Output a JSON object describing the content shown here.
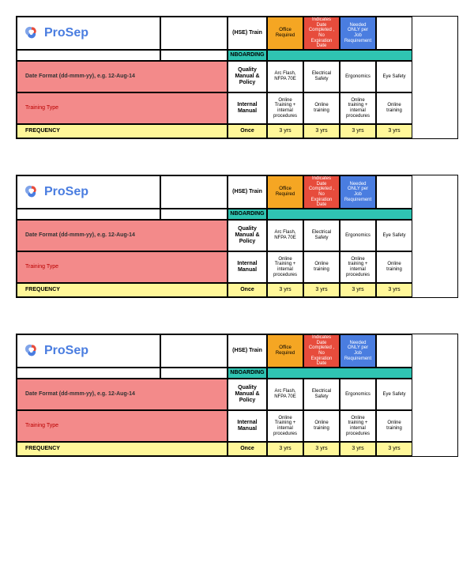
{
  "brand": {
    "name": "ProSep",
    "colors": {
      "blue": "#4a7de0",
      "red": "#e74c3c"
    }
  },
  "blocks": [
    {
      "header": {
        "hse_train": "(HSE) Train",
        "legend": [
          {
            "text": "Office Required",
            "bg": "#f5a623",
            "color": "#000"
          },
          {
            "text": "Indicates Date Completed , No Expiration Date",
            "bg": "#e74c3c",
            "color": "#fff"
          },
          {
            "text": "Needed ONLY per Job Requirement",
            "bg": "#4a7de0",
            "color": "#fff"
          }
        ],
        "nboarding": "NBOARDING"
      },
      "rows": [
        {
          "left": {
            "text": "Date Format (dd-mmm-yy), e.g. 12-Aug-14",
            "style": "pink-label"
          },
          "hdr": "Quality Manual & Policy",
          "cols": [
            "Arc Flash, NFPA 70E",
            "Electrical Safety",
            "Ergonomics",
            "Eye Safety"
          ]
        },
        {
          "left": {
            "text": "Training Type",
            "style": "pink-sublabel"
          },
          "hdr": "Internal Manual",
          "cols": [
            "Online Training + internal procedures",
            "Online training",
            "Online training + internal procedures",
            "Online training"
          ]
        }
      ],
      "freq": {
        "label": "FREQUENCY",
        "hdr": "Once",
        "cols": [
          "3 yrs",
          "3 yrs",
          "3 yrs",
          "3 yrs"
        ]
      }
    },
    {
      "header": {
        "hse_train": "(HSE) Train",
        "legend": [
          {
            "text": "Office Required",
            "bg": "#f5a623",
            "color": "#000"
          },
          {
            "text": "Indicates Date Completed , No Expiration Date",
            "bg": "#e74c3c",
            "color": "#fff"
          },
          {
            "text": "Needed ONLY per Job Requirement",
            "bg": "#4a7de0",
            "color": "#fff"
          }
        ],
        "nboarding": "NBOARDING"
      },
      "rows": [
        {
          "left": {
            "text": "Date Format (dd-mmm-yy), e.g. 12-Aug-14",
            "style": "pink-label"
          },
          "hdr": "Quality Manual & Policy",
          "cols": [
            "Arc Flash, NFPA 70E",
            "Electrical Safety",
            "Ergonomics",
            "Eye Safety"
          ]
        },
        {
          "left": {
            "text": "Training Type",
            "style": "pink-sublabel"
          },
          "hdr": "Internal Manual",
          "cols": [
            "Online Training + internal procedures",
            "Online training",
            "Online training + internal procedures",
            "Online training"
          ]
        }
      ],
      "freq": {
        "label": "FREQUENCY",
        "hdr": "Once",
        "cols": [
          "3 yrs",
          "3 yrs",
          "3 yrs",
          "3 yrs"
        ]
      }
    },
    {
      "header": {
        "hse_train": "(HSE) Train",
        "legend": [
          {
            "text": "Office Required",
            "bg": "#f5a623",
            "color": "#000"
          },
          {
            "text": "Indicates Date Completed , No Expiration Date",
            "bg": "#e74c3c",
            "color": "#fff"
          },
          {
            "text": "Needed ONLY per Job Requirement",
            "bg": "#4a7de0",
            "color": "#fff"
          }
        ],
        "nboarding": "NBOARDING"
      },
      "rows": [
        {
          "left": {
            "text": "Date Format (dd-mmm-yy), e.g. 12-Aug-14",
            "style": "pink-label"
          },
          "hdr": "Quality Manual & Policy",
          "cols": [
            "Arc Flash, NFPA 70E",
            "Electrical Safety",
            "Ergonomics",
            "Eye Safety"
          ]
        },
        {
          "left": {
            "text": "Training Type",
            "style": "pink-sublabel"
          },
          "hdr": "Internal Manual",
          "cols": [
            "Online Training + internal procedures",
            "Online training",
            "Online training + internal procedures",
            "Online training"
          ]
        }
      ],
      "freq": {
        "label": "FREQUENCY",
        "hdr": "Once",
        "cols": [
          "3 yrs",
          "3 yrs",
          "3 yrs",
          "3 yrs"
        ]
      }
    }
  ]
}
